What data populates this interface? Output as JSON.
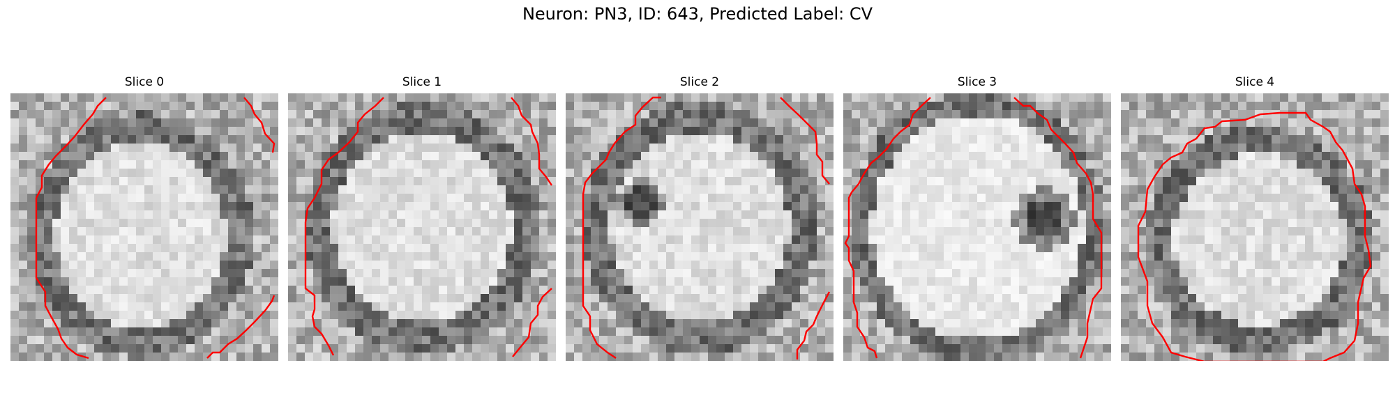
{
  "figure": {
    "title": "Neuron: PN3, ID: 643, Predicted Label: CV"
  },
  "panels": [
    {
      "title": "Slice 0"
    },
    {
      "title": "Slice 1"
    },
    {
      "title": "Slice 2"
    },
    {
      "title": "Slice 3"
    },
    {
      "title": "Slice 4"
    }
  ],
  "colors": {
    "contour": "#ff0000",
    "background": "#ffffff"
  }
}
